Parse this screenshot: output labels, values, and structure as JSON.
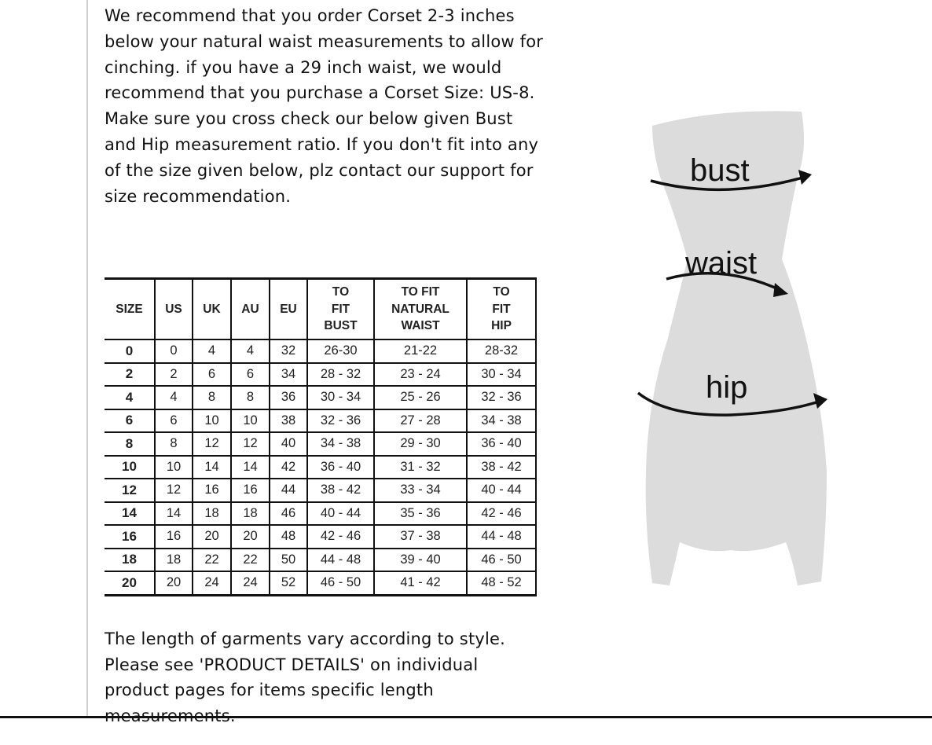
{
  "intro_text": "We recommend that you order Corset 2-3 inches below your natural waist measurements to allow for cinching. if you have a 29 inch waist, we would recommend that you purchase a Corset Size: US-8. Make sure you cross check our below given Bust and Hip measurement ratio. If you don't fit into any of the size given below, plz contact our support for size recommendation.",
  "table": {
    "headers": [
      "SIZE",
      "US",
      "UK",
      "AU",
      "EU",
      "TO FIT BUST",
      "TO FIT NATURAL WAIST",
      "TO FIT HIP"
    ],
    "rows": [
      [
        "0",
        "0",
        "4",
        "4",
        "32",
        "26-30",
        "21-22",
        "28-32"
      ],
      [
        "2",
        "2",
        "6",
        "6",
        "34",
        "28 - 32",
        "23 - 24",
        "30 - 34"
      ],
      [
        "4",
        "4",
        "8",
        "8",
        "36",
        "30 - 34",
        "25 - 26",
        "32 - 36"
      ],
      [
        "6",
        "6",
        "10",
        "10",
        "38",
        "32 - 36",
        "27 - 28",
        "34 - 38"
      ],
      [
        "8",
        "8",
        "12",
        "12",
        "40",
        "34 - 38",
        "29 - 30",
        "36 - 40"
      ],
      [
        "10",
        "10",
        "14",
        "14",
        "42",
        "36 - 40",
        "31 - 32",
        "38 - 42"
      ],
      [
        "12",
        "12",
        "16",
        "16",
        "44",
        "38 - 42",
        "33 - 34",
        "40 - 44"
      ],
      [
        "14",
        "14",
        "18",
        "18",
        "46",
        "40 - 44",
        "35 - 36",
        "42 - 46"
      ],
      [
        "16",
        "16",
        "20",
        "20",
        "48",
        "42 - 46",
        "37 - 38",
        "44 - 48"
      ],
      [
        "18",
        "18",
        "22",
        "22",
        "50",
        "44 - 48",
        "39 - 40",
        "46 - 50"
      ],
      [
        "20",
        "20",
        "24",
        "24",
        "52",
        "46 - 50",
        "41 - 42",
        "48 - 52"
      ]
    ]
  },
  "outro_text": "The length of garments vary according to style. Please see 'PRODUCT DETAILS'  on individual product pages for items specific length measurements.",
  "figure": {
    "labels": {
      "bust": "bust",
      "waist": "waist",
      "hip": "hip"
    },
    "silhouette_color": "#dcdcdc"
  }
}
